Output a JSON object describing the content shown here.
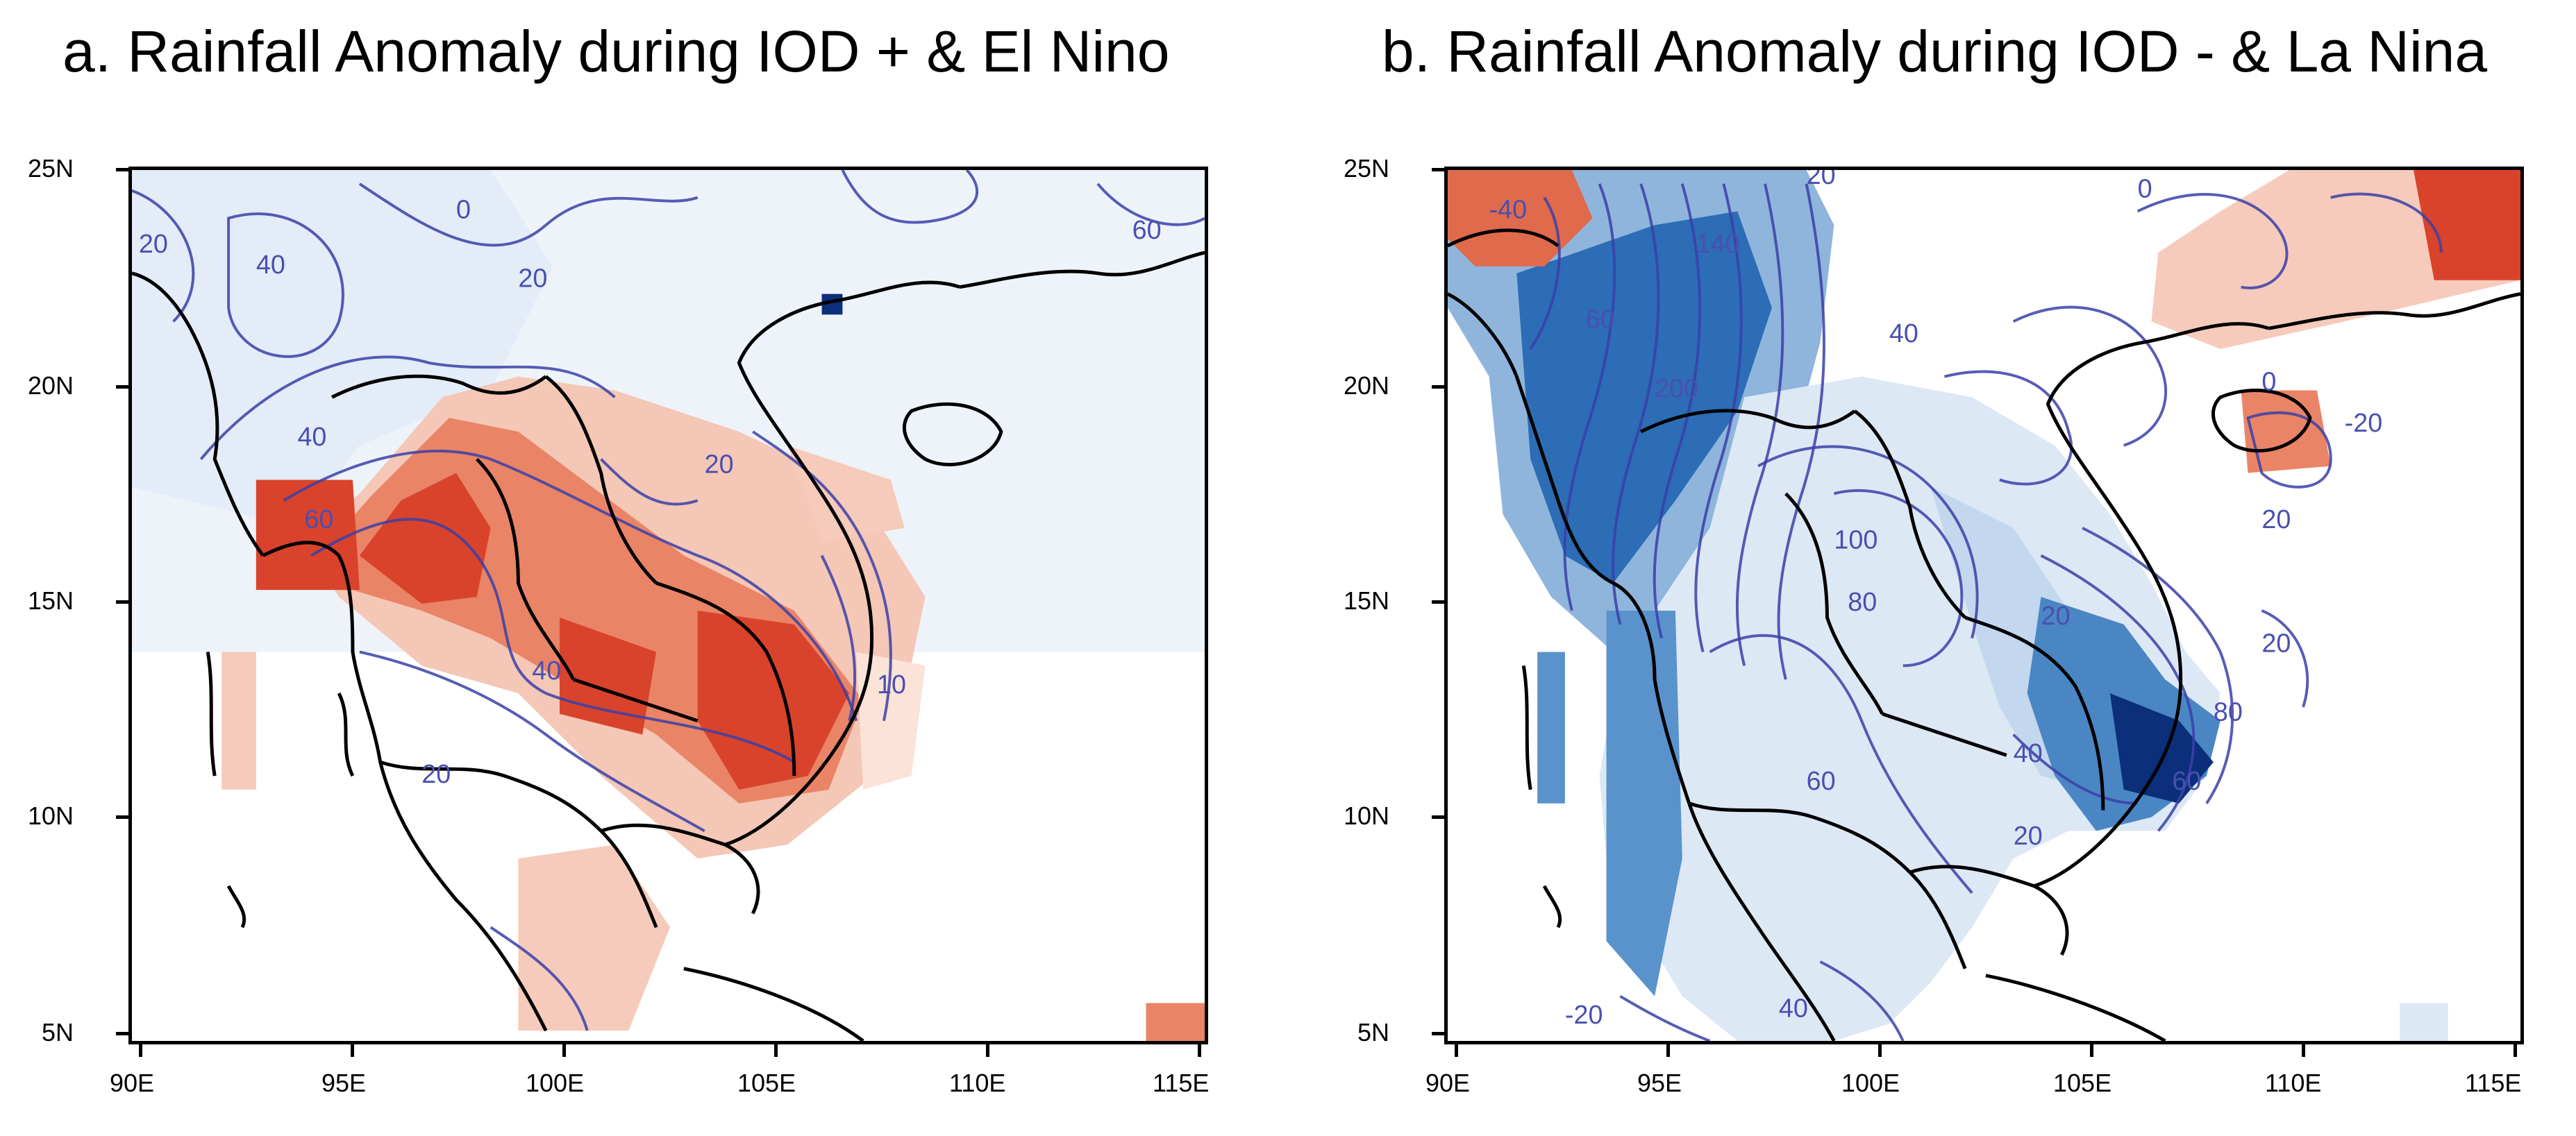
{
  "panels": [
    {
      "title": "a. Rainfall Anomaly during IOD + & El Nino",
      "y_ticks": [
        "25N",
        "20N",
        "15N",
        "10N",
        "5N"
      ],
      "x_ticks": [
        "90E",
        "95E",
        "100E",
        "105E",
        "110E",
        "115E"
      ],
      "contour_labels": [
        "20",
        "40",
        "0",
        "60",
        "20",
        "40",
        "20",
        "60",
        "40",
        "20",
        "10"
      ]
    },
    {
      "title": "b. Rainfall Anomaly during IOD - & La Nina",
      "y_ticks": [
        "25N",
        "20N",
        "15N",
        "10N",
        "5N"
      ],
      "x_ticks": [
        "90E",
        "95E",
        "100E",
        "105E",
        "110E",
        "115E"
      ],
      "contour_labels": [
        "-40",
        "20",
        "0",
        "140",
        "60",
        "200",
        "40",
        "0",
        "-20",
        "20",
        "100",
        "80",
        "20",
        "60",
        "40",
        "20",
        "60",
        "80",
        "20",
        "-20",
        "40"
      ]
    }
  ],
  "colors": {
    "positive_strong": "#d9432b",
    "positive_mid": "#ea8466",
    "positive_light": "#f6cbbc",
    "negative_light": "#dde8f5",
    "negative_mid": "#8fb5dc",
    "negative_strong": "#2c6db5",
    "negative_darkest": "#0b2f7a",
    "contour": "#3a3fa8",
    "coastline": "#000000"
  }
}
